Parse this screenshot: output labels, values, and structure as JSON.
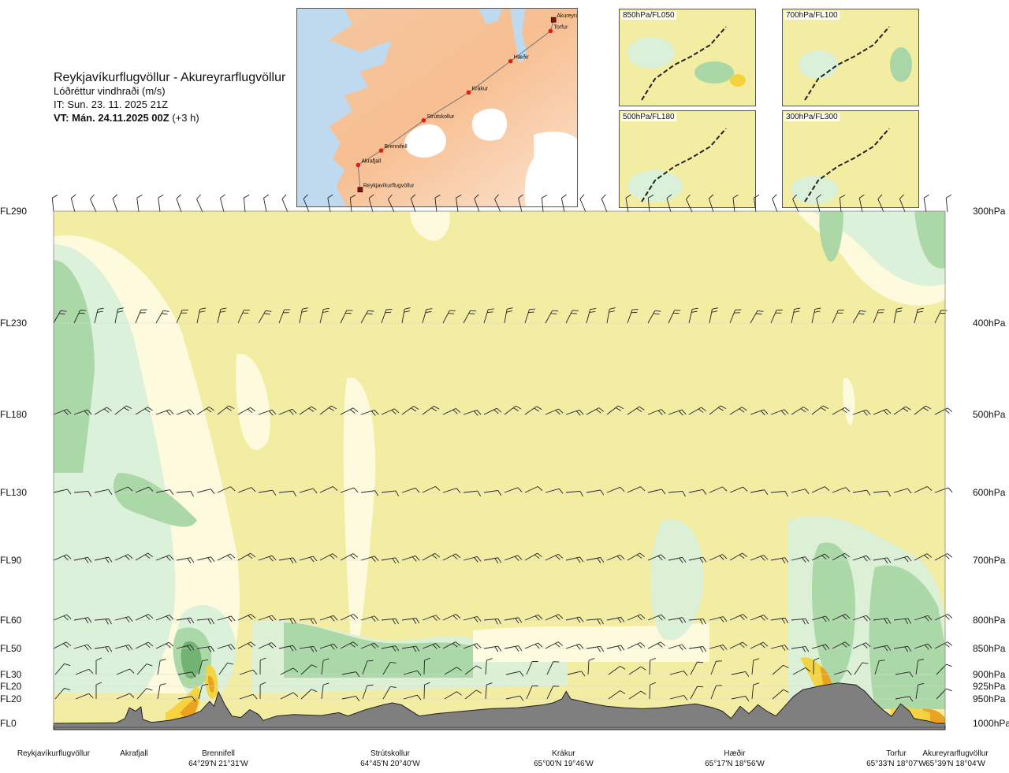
{
  "title": {
    "route": "Reykjavíkurflugvöllur - Akureyrarflugvöllur",
    "parameter": "Lóðréttur vindhraði (m/s)",
    "issued": "IT: Sun. 23. 11. 2025 21Z",
    "valid_bold": "VT: Mán. 24.11.2025 00Z",
    "valid_offset": "(+3 h)"
  },
  "map": {
    "places": [
      {
        "name": "Akureyrarflugvöllur",
        "lon": -18.07,
        "lat": 65.65,
        "marker": "square"
      },
      {
        "name": "Torfur",
        "lon": -18.13,
        "lat": 65.55,
        "marker": "dot"
      },
      {
        "name": "Hæðir",
        "lon": -18.93,
        "lat": 65.28,
        "marker": "dot"
      },
      {
        "name": "Krákur",
        "lon": -19.77,
        "lat": 65.0,
        "marker": "dot"
      },
      {
        "name": "Strútskollur",
        "lon": -20.67,
        "lat": 64.75,
        "marker": "dot"
      },
      {
        "name": "Brennifell",
        "lon": -21.52,
        "lat": 64.48,
        "marker": "dot"
      },
      {
        "name": "Akrafjall",
        "lon": -21.98,
        "lat": 64.35,
        "marker": "dot"
      },
      {
        "name": "Reykjavíkurflugvöllur",
        "lon": -21.94,
        "lat": 64.13,
        "marker": "square"
      }
    ]
  },
  "mini_maps": [
    {
      "label": "850hPa/FL050"
    },
    {
      "label": "700hPa/FL100"
    },
    {
      "label": "500hPa/FL180"
    },
    {
      "label": "300hPa/FL300"
    }
  ],
  "chart_data": {
    "type": "heatmap",
    "y_axis_left": [
      "FL290",
      "FL230",
      "FL180",
      "FL130",
      "FL90",
      "FL60",
      "FL50",
      "FL30",
      "FL20",
      "FL20",
      "FL0"
    ],
    "y_axis_right": [
      "300hPa",
      "400hPa",
      "500hPa",
      "600hPa",
      "700hPa",
      "800hPa",
      "850hPa",
      "900hPa",
      "925hPa",
      "950hPa",
      "1000hPa"
    ],
    "pressure_levels_hpa": [
      300,
      400,
      500,
      600,
      700,
      800,
      850,
      900,
      925,
      950,
      1000
    ],
    "ylim_hpa": [
      1000,
      300
    ],
    "grid": true,
    "waypoints": [
      {
        "name": "Reykjavíkurflugvöllur",
        "coords": "",
        "x": 0.0
      },
      {
        "name": "Akrafjall",
        "coords": "",
        "x": 0.09
      },
      {
        "name": "Brennifell",
        "coords": "64°29'N 21°31'W",
        "x": 0.185
      },
      {
        "name": "Strútskollur",
        "coords": "64°45'N 20°40'W",
        "x": 0.385
      },
      {
        "name": "Krákur",
        "coords": "65°00'N 19°46'W",
        "x": 0.575
      },
      {
        "name": "Hæðir",
        "coords": "65°17'N 18°56'W",
        "x": 0.765
      },
      {
        "name": "Torfur",
        "coords": "65°33'N 18°07'W",
        "x": 0.96
      },
      {
        "name": "Akureyrarflugvöllur",
        "coords": "65°39'N 18°04'W",
        "x": 1.0
      }
    ],
    "colors": {
      "strong_down": "#6fb070",
      "down": "#a8d6a4",
      "weak_down": "#daf0d8",
      "neutral": "#fefbe0",
      "weak_up": "#f3eda4",
      "up": "#f5d23a",
      "strong_up": "#e8a020",
      "very_strong_up": "#d46a10",
      "terrain": "#7f7f7f"
    },
    "terrain_profile_hpa": [
      [
        0.0,
        1000
      ],
      [
        0.07,
        999
      ],
      [
        0.08,
        990
      ],
      [
        0.085,
        968
      ],
      [
        0.092,
        975
      ],
      [
        0.098,
        966
      ],
      [
        0.1,
        992
      ],
      [
        0.11,
        998
      ],
      [
        0.13,
        994
      ],
      [
        0.15,
        986
      ],
      [
        0.165,
        975
      ],
      [
        0.175,
        955
      ],
      [
        0.18,
        965
      ],
      [
        0.185,
        936
      ],
      [
        0.192,
        962
      ],
      [
        0.2,
        985
      ],
      [
        0.21,
        988
      ],
      [
        0.22,
        972
      ],
      [
        0.23,
        982
      ],
      [
        0.235,
        994
      ],
      [
        0.25,
        985
      ],
      [
        0.27,
        982
      ],
      [
        0.3,
        984
      ],
      [
        0.32,
        978
      ],
      [
        0.33,
        985
      ],
      [
        0.35,
        972
      ],
      [
        0.37,
        962
      ],
      [
        0.38,
        958
      ],
      [
        0.39,
        962
      ],
      [
        0.41,
        985
      ],
      [
        0.43,
        980
      ],
      [
        0.46,
        975
      ],
      [
        0.49,
        970
      ],
      [
        0.52,
        968
      ],
      [
        0.55,
        962
      ],
      [
        0.56,
        958
      ],
      [
        0.57,
        950
      ],
      [
        0.575,
        935
      ],
      [
        0.58,
        950
      ],
      [
        0.6,
        958
      ],
      [
        0.62,
        965
      ],
      [
        0.64,
        968
      ],
      [
        0.66,
        970
      ],
      [
        0.68,
        968
      ],
      [
        0.7,
        964
      ],
      [
        0.72,
        960
      ],
      [
        0.74,
        968
      ],
      [
        0.75,
        975
      ],
      [
        0.76,
        990
      ],
      [
        0.77,
        965
      ],
      [
        0.78,
        980
      ],
      [
        0.79,
        962
      ],
      [
        0.8,
        975
      ],
      [
        0.81,
        985
      ],
      [
        0.82,
        965
      ],
      [
        0.83,
        945
      ],
      [
        0.84,
        932
      ],
      [
        0.86,
        924
      ],
      [
        0.88,
        918
      ],
      [
        0.9,
        922
      ],
      [
        0.91,
        935
      ],
      [
        0.92,
        955
      ],
      [
        0.93,
        972
      ],
      [
        0.94,
        986
      ],
      [
        0.95,
        960
      ],
      [
        0.96,
        975
      ],
      [
        0.965,
        990
      ],
      [
        0.97,
        992
      ],
      [
        0.98,
        995
      ],
      [
        0.99,
        1000
      ],
      [
        1.0,
        1000
      ]
    ]
  }
}
